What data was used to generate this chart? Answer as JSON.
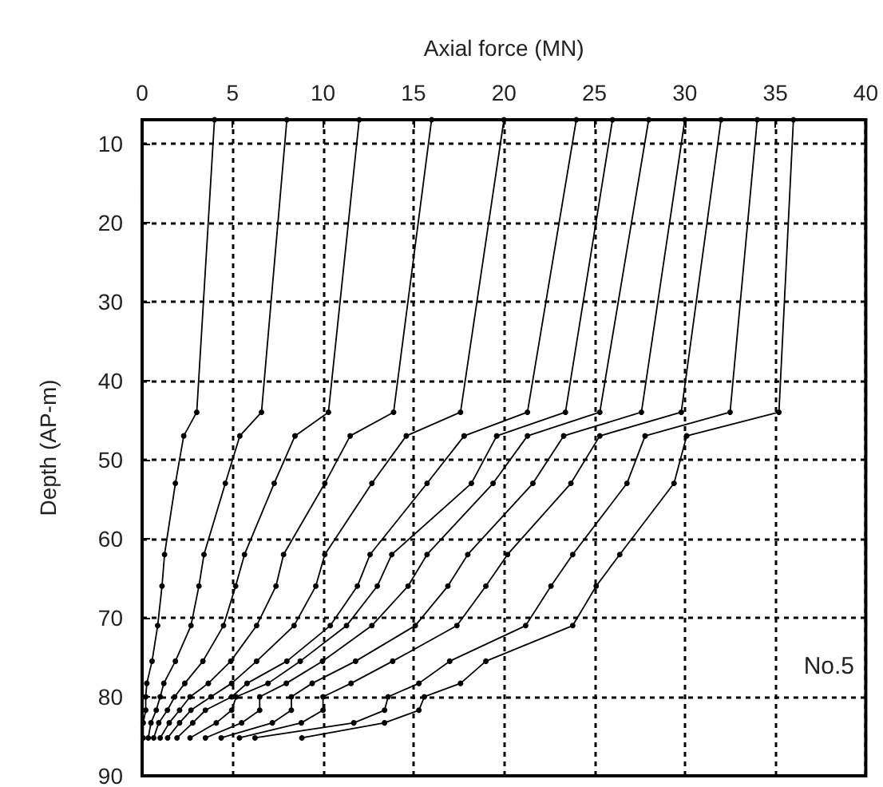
{
  "chart_data": {
    "type": "line",
    "xlabel": "Axial force (MN)",
    "ylabel": "Depth (AP-m)",
    "xlim": [
      0,
      40
    ],
    "xticks": [
      0,
      5,
      10,
      15,
      20,
      25,
      30,
      35,
      40
    ],
    "ylim": [
      90,
      7
    ],
    "yticks": [
      10,
      20,
      30,
      40,
      50,
      60,
      70,
      80,
      90
    ],
    "grid": true,
    "marker": "circle",
    "line_style": "solid",
    "annotations": [
      "No.5"
    ],
    "series": [
      {
        "color": "#000000",
        "x": [
          4,
          3.02,
          2.3,
          1.84,
          1.24,
          1.1,
          0.86,
          0.55,
          0.26,
          0.2,
          0.2,
          0.06,
          0.06
        ],
        "values": [
          7,
          44,
          47,
          53,
          62,
          66,
          71,
          75.5,
          78.3,
          80,
          81.7,
          83.3,
          85.2
        ]
      },
      {
        "color": "#000000",
        "x": [
          8,
          6.6,
          5.4,
          4.6,
          3.42,
          3.14,
          2.7,
          1.84,
          1.2,
          1.0,
          0.78,
          0.49,
          0.34
        ],
        "values": [
          7,
          44,
          47,
          53,
          62,
          66,
          71,
          75.5,
          78.3,
          80,
          81.7,
          83.3,
          85.2
        ]
      },
      {
        "color": "#000000",
        "x": [
          12,
          10.3,
          8.45,
          7.3,
          5.66,
          5.17,
          4.5,
          3.36,
          2.36,
          1.8,
          1.4,
          0.92,
          0.64
        ],
        "values": [
          7,
          44,
          47,
          53,
          62,
          66,
          71,
          75.5,
          78.3,
          80,
          81.7,
          83.3,
          85.2
        ]
      },
      {
        "color": "#000000",
        "x": [
          16,
          13.9,
          11.5,
          10.1,
          7.82,
          7.4,
          6.33,
          4.9,
          3.66,
          2.65,
          2.07,
          1.5,
          1.0
        ],
        "values": [
          7,
          44,
          47,
          53,
          62,
          66,
          71,
          75.5,
          78.3,
          80,
          81.7,
          83.3,
          85.2
        ]
      },
      {
        "color": "#000000",
        "x": [
          20,
          17.6,
          14.6,
          12.7,
          10.1,
          9.6,
          8.4,
          6.33,
          4.95,
          3.8,
          2.7,
          2.07,
          1.41
        ],
        "values": [
          7,
          44,
          47,
          53,
          62,
          66,
          71,
          75.5,
          78.3,
          80,
          81.7,
          83.3,
          85.2
        ]
      },
      {
        "color": "#000000",
        "x": [
          24,
          21.3,
          17.8,
          15.75,
          12.6,
          11.9,
          10.4,
          8.0,
          5.8,
          4.95,
          3.5,
          2.8,
          1.93
        ],
        "values": [
          7,
          44,
          47,
          53,
          62,
          66,
          71,
          75.5,
          78.3,
          80,
          81.7,
          83.3,
          85.2
        ]
      },
      {
        "color": "#000000",
        "x": [
          26,
          23.4,
          19.6,
          18.2,
          13.8,
          13.0,
          11.3,
          8.74,
          6.96,
          5.2,
          4.95,
          4.1,
          2.65
        ],
        "values": [
          7,
          44,
          47,
          53,
          62,
          66,
          71,
          75.5,
          78.3,
          80,
          81.7,
          83.3,
          85.2
        ]
      },
      {
        "color": "#000000",
        "x": [
          28,
          25.3,
          21.3,
          19.4,
          15.75,
          14.7,
          12.7,
          9.97,
          7.97,
          6.5,
          6.5,
          5.5,
          3.5
        ],
        "values": [
          7,
          44,
          47,
          53,
          62,
          66,
          71,
          75.5,
          78.3,
          80,
          81.7,
          83.3,
          85.2
        ]
      },
      {
        "color": "#000000",
        "x": [
          30,
          27.6,
          23.3,
          21.6,
          18.0,
          16.9,
          15.1,
          11.8,
          9.4,
          8.25,
          8.25,
          7.2,
          4.37
        ],
        "values": [
          7,
          44,
          47,
          53,
          62,
          66,
          71,
          75.5,
          78.3,
          80,
          81.7,
          83.3,
          85.2
        ]
      },
      {
        "color": "#000000",
        "x": [
          32,
          29.8,
          25.3,
          23.7,
          20.2,
          19.0,
          17.4,
          13.85,
          11.55,
          10.0,
          10.0,
          8.8,
          5.38
        ],
        "values": [
          7,
          44,
          47,
          53,
          62,
          66,
          71,
          75.5,
          78.3,
          80,
          81.7,
          83.3,
          85.2
        ]
      },
      {
        "color": "#000000",
        "x": [
          34,
          32.5,
          27.8,
          26.8,
          23.8,
          22.6,
          21.2,
          17.0,
          15.3,
          13.6,
          13.4,
          11.7,
          6.24
        ],
        "values": [
          7,
          44,
          47,
          53,
          62,
          66,
          71,
          75.5,
          78.3,
          80,
          81.7,
          83.3,
          85.2
        ]
      },
      {
        "color": "#000000",
        "x": [
          36,
          35.2,
          30.1,
          29.4,
          26.4,
          25.1,
          23.8,
          19.0,
          17.6,
          15.6,
          15.3,
          13.4,
          8.83
        ],
        "values": [
          7,
          44,
          47,
          53,
          62,
          66,
          71,
          75.5,
          78.3,
          80,
          81.7,
          83.3,
          85.2
        ]
      }
    ]
  }
}
